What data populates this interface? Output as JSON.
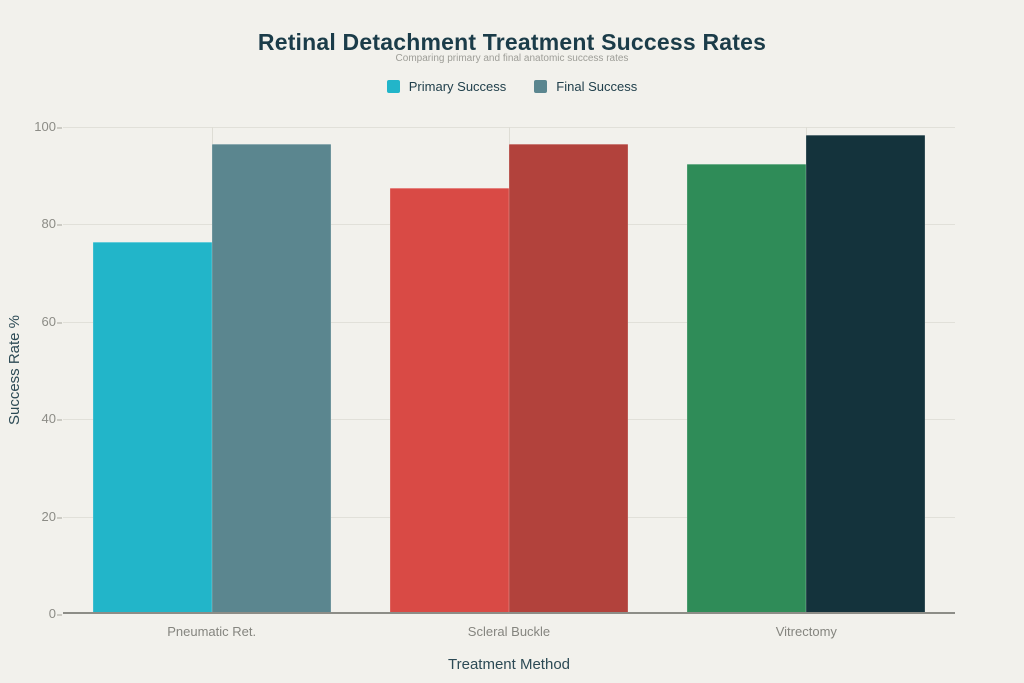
{
  "chart_data": {
    "type": "bar",
    "title": "Retinal Detachment Treatment Success Rates",
    "subtitle": "Comparing primary and final anatomic success rates",
    "categories": [
      "Pneumatic Ret.",
      "Scleral Buckle",
      "Vitrectomy"
    ],
    "series": [
      {
        "name": "Primary Success",
        "values": [
          76,
          87,
          92
        ],
        "colors": [
          "#22b5c9",
          "#d94a45",
          "#2f8c58"
        ]
      },
      {
        "name": "Final Success",
        "values": [
          96,
          96,
          98
        ],
        "colors": [
          "#5b868f",
          "#b2423c",
          "#14333c"
        ]
      }
    ],
    "xlabel": "Treatment Method",
    "ylabel": "Success Rate %",
    "ylim": [
      0,
      100
    ],
    "yticks": [
      0,
      20,
      40,
      60,
      80,
      100
    ],
    "grid": true,
    "legend_position": "top",
    "colors": {
      "background": "#f2f1ec",
      "title_text": "#1b3c49",
      "subtitle_text": "#9d9d97",
      "axis_title_text": "#2c4a55",
      "tick_label_text": "#8c8c86",
      "gridline": "#e1e0d9",
      "axis_line": "#8d8d87"
    }
  }
}
